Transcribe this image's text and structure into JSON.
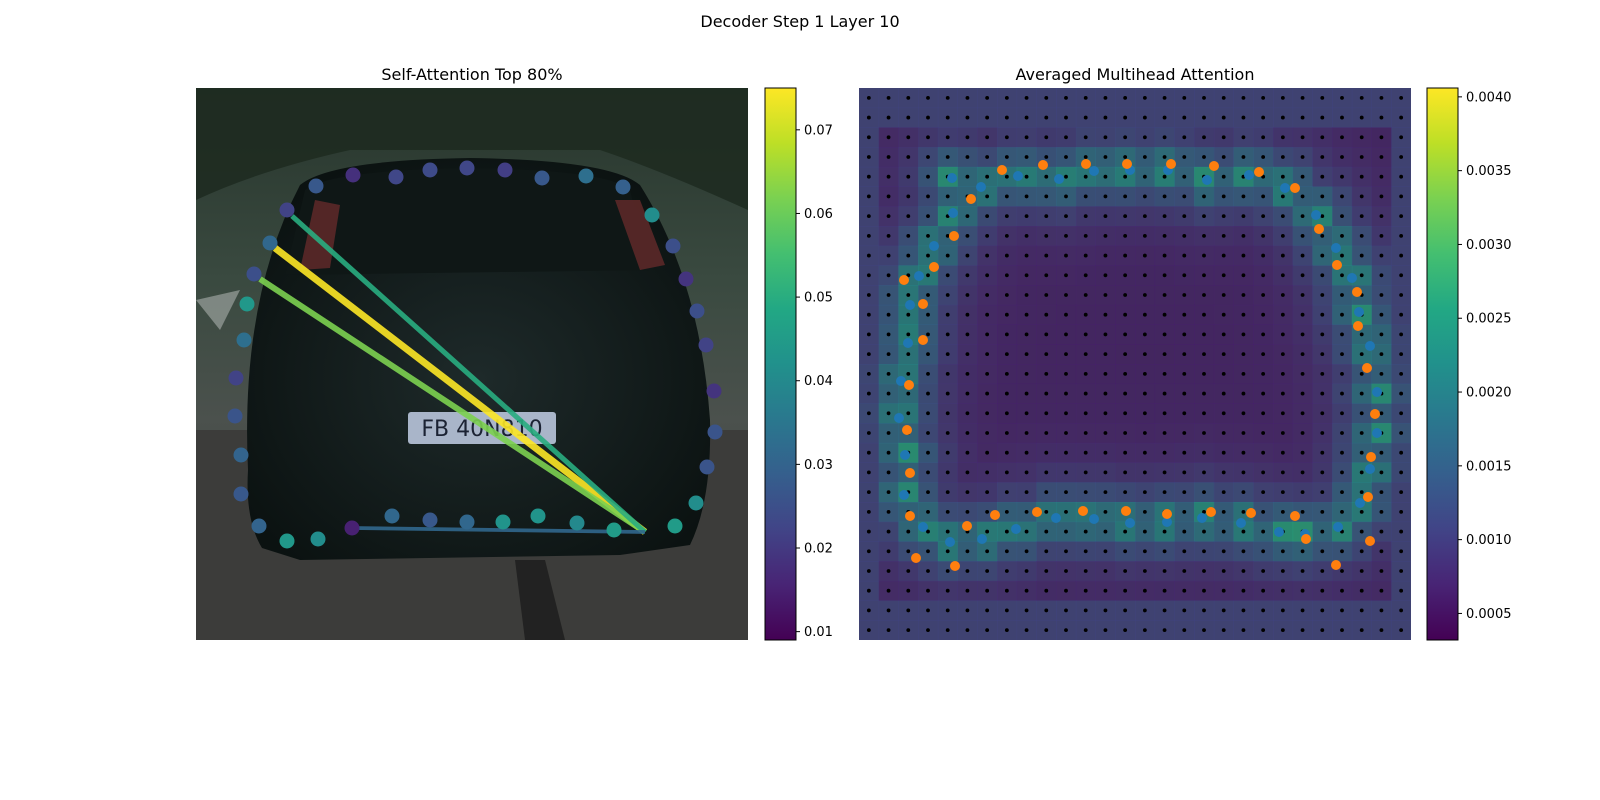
{
  "figure": {
    "title": "Decoder Step 1 Layer 10"
  },
  "chart_data": [
    {
      "type": "scatter",
      "title": "Self-Attention Top 80%",
      "background": "photo-rear-of-dark-hatchback-car-on-street",
      "plate_text": "FB 40N810",
      "colormap": "viridis",
      "colorbar": {
        "min": 0.009,
        "max": 0.075,
        "ticks": [
          0.01,
          0.02,
          0.03,
          0.04,
          0.05,
          0.06,
          0.07
        ],
        "tick_labels": [
          "0.01",
          "0.02",
          "0.03",
          "0.04",
          "0.05",
          "0.06",
          "0.07"
        ]
      },
      "query_point": {
        "x": 645,
        "y": 532
      },
      "points": [
        {
          "x": 254,
          "y": 274,
          "v": 0.025
        },
        {
          "x": 287,
          "y": 210,
          "v": 0.022
        },
        {
          "x": 316,
          "y": 186,
          "v": 0.027
        },
        {
          "x": 353,
          "y": 175,
          "v": 0.018
        },
        {
          "x": 396,
          "y": 177,
          "v": 0.023
        },
        {
          "x": 430,
          "y": 170,
          "v": 0.024
        },
        {
          "x": 467,
          "y": 168,
          "v": 0.023
        },
        {
          "x": 505,
          "y": 170,
          "v": 0.021
        },
        {
          "x": 542,
          "y": 178,
          "v": 0.027
        },
        {
          "x": 586,
          "y": 176,
          "v": 0.033
        },
        {
          "x": 623,
          "y": 187,
          "v": 0.029
        },
        {
          "x": 652,
          "y": 215,
          "v": 0.041
        },
        {
          "x": 673,
          "y": 246,
          "v": 0.025
        },
        {
          "x": 686,
          "y": 279,
          "v": 0.019
        },
        {
          "x": 697,
          "y": 311,
          "v": 0.025
        },
        {
          "x": 706,
          "y": 345,
          "v": 0.022
        },
        {
          "x": 714,
          "y": 391,
          "v": 0.019
        },
        {
          "x": 715,
          "y": 432,
          "v": 0.026
        },
        {
          "x": 707,
          "y": 467,
          "v": 0.026
        },
        {
          "x": 696,
          "y": 503,
          "v": 0.041
        },
        {
          "x": 675,
          "y": 526,
          "v": 0.045
        },
        {
          "x": 614,
          "y": 530,
          "v": 0.045
        },
        {
          "x": 577,
          "y": 523,
          "v": 0.04
        },
        {
          "x": 538,
          "y": 516,
          "v": 0.043
        },
        {
          "x": 503,
          "y": 522,
          "v": 0.043
        },
        {
          "x": 467,
          "y": 522,
          "v": 0.031
        },
        {
          "x": 430,
          "y": 520,
          "v": 0.027
        },
        {
          "x": 392,
          "y": 516,
          "v": 0.031
        },
        {
          "x": 352,
          "y": 528,
          "v": 0.015
        },
        {
          "x": 318,
          "y": 539,
          "v": 0.041
        },
        {
          "x": 287,
          "y": 541,
          "v": 0.044
        },
        {
          "x": 259,
          "y": 526,
          "v": 0.03
        },
        {
          "x": 241,
          "y": 494,
          "v": 0.027
        },
        {
          "x": 241,
          "y": 455,
          "v": 0.03
        },
        {
          "x": 235,
          "y": 416,
          "v": 0.026
        },
        {
          "x": 236,
          "y": 378,
          "v": 0.022
        },
        {
          "x": 244,
          "y": 340,
          "v": 0.033
        },
        {
          "x": 247,
          "y": 304,
          "v": 0.044
        },
        {
          "x": 270,
          "y": 243,
          "v": 0.031
        }
      ],
      "links": [
        {
          "to_x": 275,
          "to_y": 248,
          "v": 0.075
        },
        {
          "to_x": 260,
          "to_y": 279,
          "v": 0.062
        },
        {
          "to_x": 292,
          "to_y": 216,
          "v": 0.05
        },
        {
          "to_x": 352,
          "to_y": 528,
          "v": 0.031
        }
      ]
    },
    {
      "type": "heatmap",
      "title": "Averaged Multihead Attention",
      "background": "photo-rear-of-dark-hatchback-car-on-street-dimmed",
      "colormap": "viridis",
      "grid": {
        "cols": 28,
        "rows": 28
      },
      "colorbar": {
        "min": 0.00032,
        "max": 0.00406,
        "ticks": [
          0.0005,
          0.001,
          0.0015,
          0.002,
          0.0025,
          0.003,
          0.0035,
          0.004
        ],
        "tick_labels": [
          "0.0005",
          "0.0010",
          "0.0015",
          "0.0020",
          "0.0025",
          "0.0030",
          "0.0035",
          "0.0040"
        ]
      },
      "series": [
        {
          "color": "#1f77b4",
          "points": [
            [
              952,
              178
            ],
            [
              981,
              187
            ],
            [
              1018,
              176
            ],
            [
              1059,
              179
            ],
            [
              1094,
              171
            ],
            [
              1130,
              170
            ],
            [
              1168,
              170
            ],
            [
              1207,
              180
            ],
            [
              1249,
              175
            ],
            [
              1285,
              188
            ],
            [
              1316,
              215
            ],
            [
              1336,
              248
            ],
            [
              1352,
              278
            ],
            [
              1359,
              312
            ],
            [
              1370,
              346
            ],
            [
              1377,
              392
            ],
            [
              1377,
              433
            ],
            [
              1370,
              469
            ],
            [
              1360,
              503
            ],
            [
              1338,
              527
            ],
            [
              1305,
              534
            ],
            [
              1279,
              532
            ],
            [
              1241,
              523
            ],
            [
              1202,
              518
            ],
            [
              1167,
              522
            ],
            [
              1130,
              523
            ],
            [
              1094,
              519
            ],
            [
              1056,
              518
            ],
            [
              1016,
              529
            ],
            [
              982,
              539
            ],
            [
              950,
              542
            ],
            [
              923,
              527
            ],
            [
              904,
              495
            ],
            [
              905,
              455
            ],
            [
              899,
              418
            ],
            [
              901,
              381
            ],
            [
              908,
              343
            ],
            [
              910,
              305
            ],
            [
              919,
              276
            ],
            [
              934,
              246
            ],
            [
              953,
              213
            ]
          ]
        },
        {
          "color": "#ff7f0e",
          "points": [
            [
              904,
              280
            ],
            [
              923,
              304
            ],
            [
              934,
              267
            ],
            [
              923,
              340
            ],
            [
              909,
              385
            ],
            [
              907,
              430
            ],
            [
              910,
              473
            ],
            [
              910,
              516
            ],
            [
              916,
              558
            ],
            [
              955,
              566
            ],
            [
              967,
              526
            ],
            [
              995,
              515
            ],
            [
              1037,
              512
            ],
            [
              1083,
              511
            ],
            [
              1126,
              511
            ],
            [
              1167,
              514
            ],
            [
              1211,
              512
            ],
            [
              1251,
              513
            ],
            [
              1295,
              516
            ],
            [
              1306,
              539
            ],
            [
              1336,
              565
            ],
            [
              1370,
              541
            ],
            [
              1368,
              497
            ],
            [
              1371,
              457
            ],
            [
              1375,
              414
            ],
            [
              1367,
              368
            ],
            [
              1358,
              326
            ],
            [
              1357,
              292
            ],
            [
              1337,
              265
            ],
            [
              1319,
              229
            ],
            [
              1295,
              188
            ],
            [
              1259,
              172
            ],
            [
              1214,
              166
            ],
            [
              1171,
              164
            ],
            [
              1127,
              164
            ],
            [
              1086,
              164
            ],
            [
              1043,
              165
            ],
            [
              1002,
              170
            ],
            [
              971,
              199
            ],
            [
              954,
              236
            ]
          ]
        }
      ]
    }
  ]
}
